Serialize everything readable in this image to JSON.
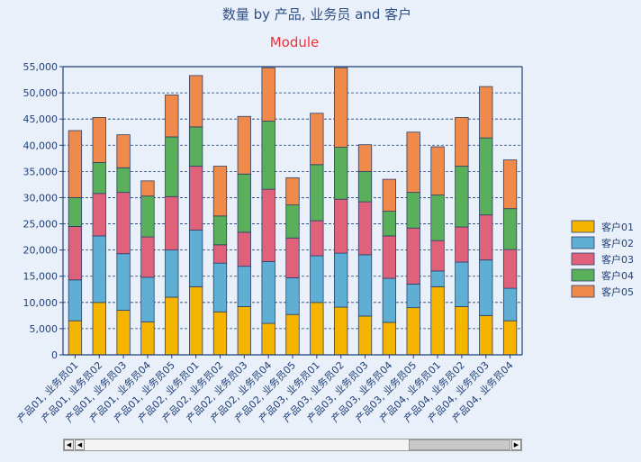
{
  "chart_data": {
    "type": "bar",
    "stacked": true,
    "title": "数量 by 产品, 业务员 and 客户",
    "subtitle": "Module",
    "categories": [
      "产品01, 业务员01",
      "产品01, 业务员02",
      "产品01, 业务员03",
      "产品01, 业务员04",
      "产品01, 业务员05",
      "产品02, 业务员01",
      "产品02, 业务员02",
      "产品02, 业务员03",
      "产品02, 业务员04",
      "产品02, 业务员05",
      "产品03, 业务员01",
      "产品03, 业务员02",
      "产品03, 业务员03",
      "产品03, 业务员04",
      "产品03, 业务员05",
      "产品04, 业务员01",
      "产品04, 业务员02",
      "产品04, 业务员03",
      "产品04, 业务员04"
    ],
    "series": [
      {
        "name": "客户01",
        "color": "#f5b400",
        "values": [
          6500,
          10000,
          8500,
          6300,
          11000,
          13000,
          8200,
          9200,
          6000,
          7700,
          10000,
          9100,
          7400,
          6200,
          9000,
          13000,
          9200,
          7500,
          6500
        ]
      },
      {
        "name": "客户02",
        "color": "#5fafd4",
        "values": [
          7800,
          12700,
          10800,
          8500,
          9000,
          10800,
          9300,
          7700,
          11800,
          7000,
          8900,
          10300,
          11700,
          8400,
          4500,
          3000,
          8500,
          10600,
          6200
        ]
      },
      {
        "name": "客户03",
        "color": "#e0627a",
        "values": [
          10200,
          8100,
          11700,
          7700,
          10200,
          12200,
          3500,
          6500,
          13800,
          7600,
          6700,
          10300,
          10100,
          8100,
          10700,
          5800,
          6700,
          8600,
          7400
        ]
      },
      {
        "name": "客户04",
        "color": "#5aaf5a",
        "values": [
          5500,
          5900,
          4700,
          7800,
          11400,
          7500,
          5500,
          11100,
          13000,
          6300,
          10700,
          9900,
          5800,
          4700,
          6800,
          8700,
          11600,
          14700,
          7800
        ]
      },
      {
        "name": "客户05",
        "color": "#ef8a4a",
        "values": [
          12800,
          8600,
          6300,
          2900,
          8000,
          9800,
          9500,
          11000,
          10200,
          5200,
          9800,
          15200,
          5100,
          6100,
          11500,
          9200,
          9300,
          9800,
          9300
        ]
      }
    ],
    "ylim": [
      0,
      55000
    ],
    "yticks": [
      "0",
      "5,000",
      "10,000",
      "15,000",
      "20,000",
      "25,000",
      "30,000",
      "35,000",
      "40,000",
      "45,000",
      "50,000",
      "55,000"
    ],
    "grid": true,
    "legend_position": "right"
  },
  "scrollbar": {
    "first_label": "◀",
    "prev_label": "◀",
    "next_label": "▶"
  }
}
